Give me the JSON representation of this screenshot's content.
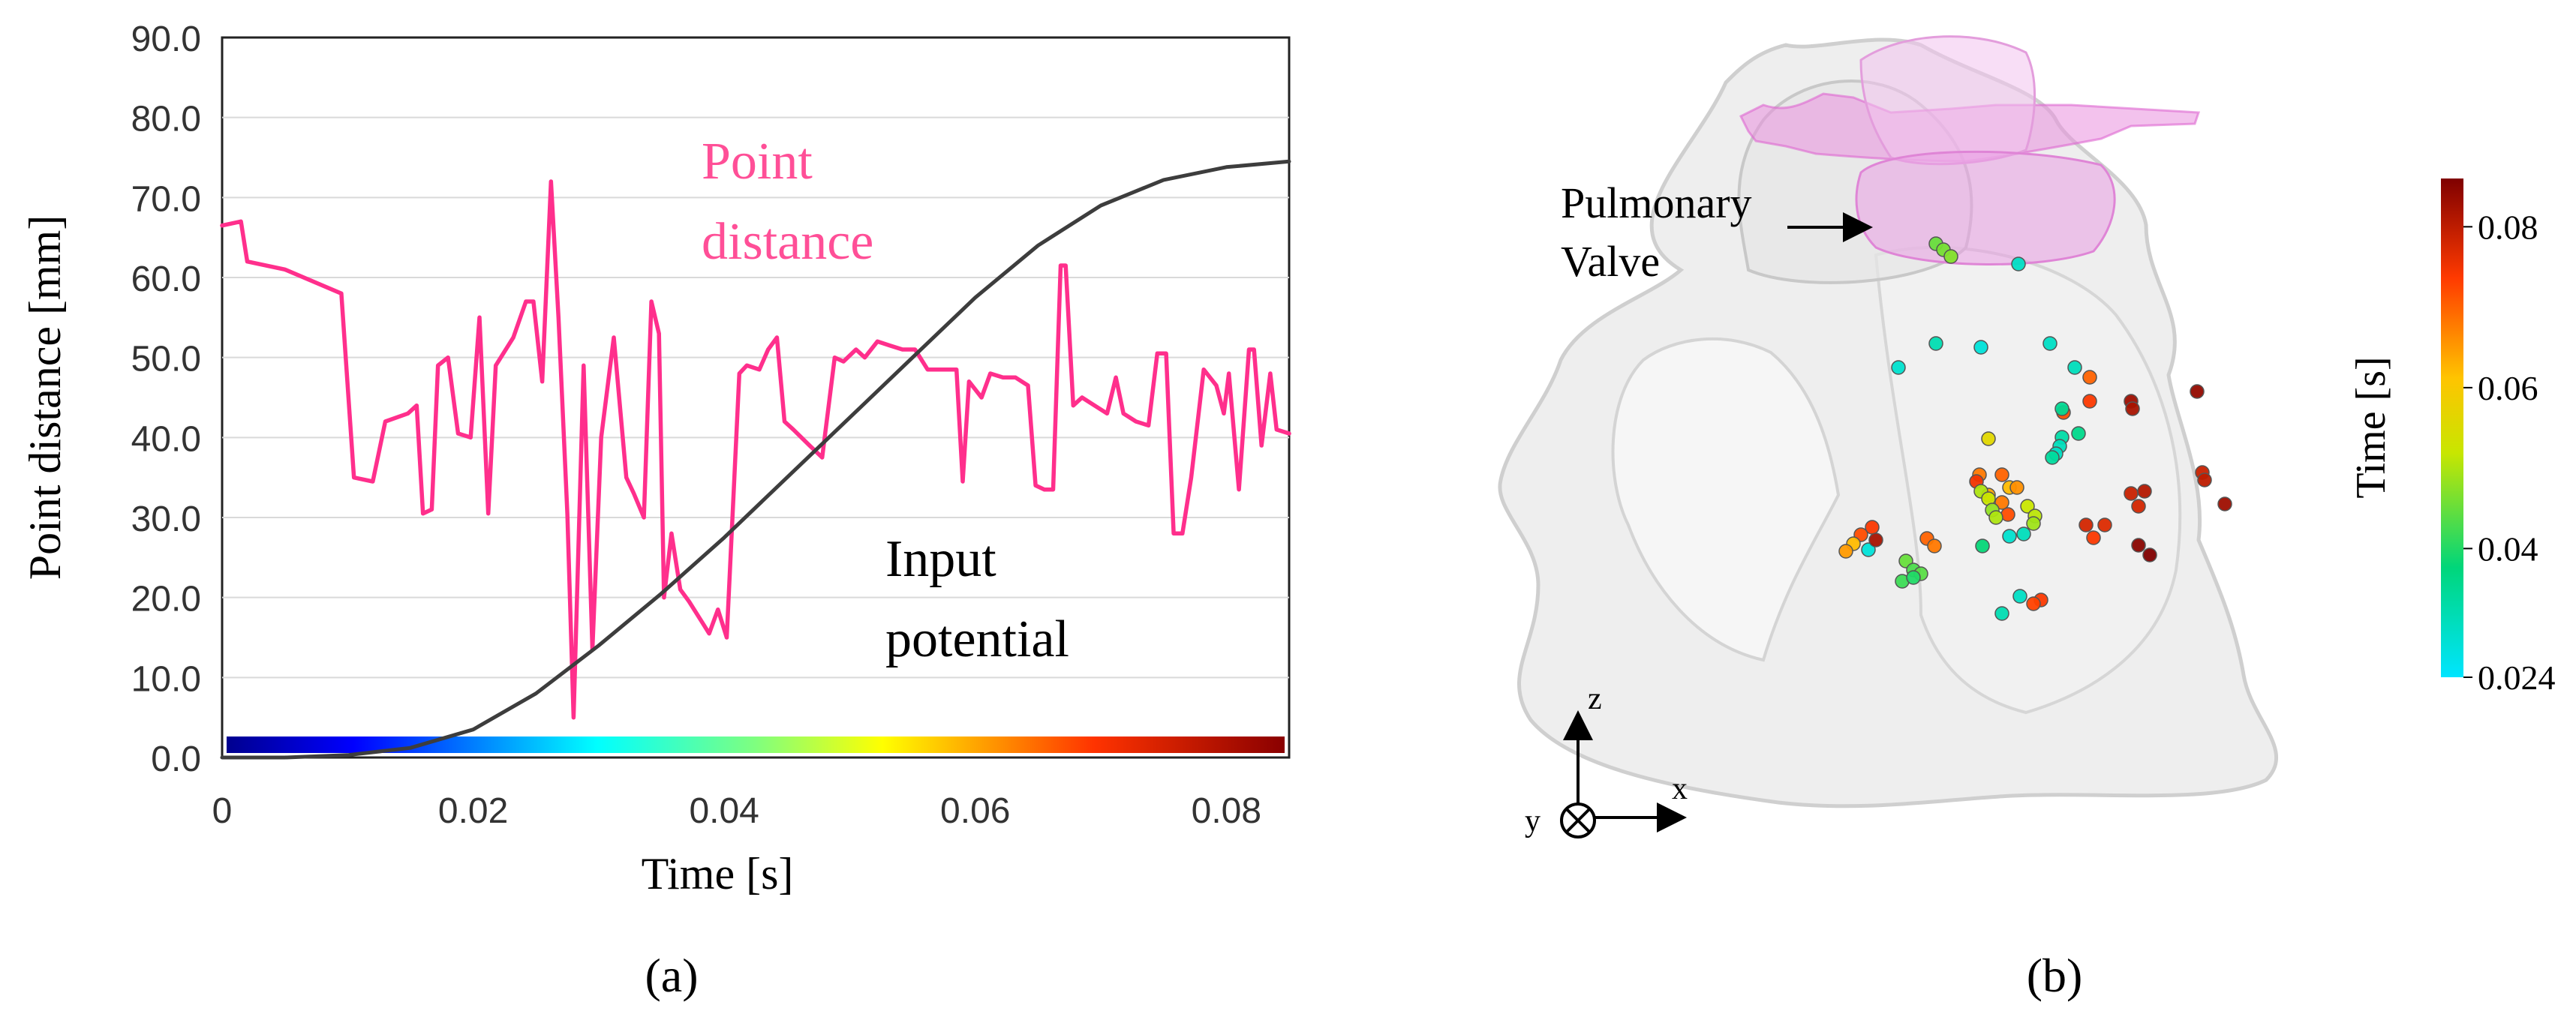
{
  "chart_data": [
    {
      "type": "line",
      "panel_label": "(a)",
      "xlabel": "Time [s]",
      "ylabel": "Point distance [mm]",
      "xlim": [
        0,
        0.085
      ],
      "ylim": [
        0,
        90
      ],
      "x_ticks": [
        "0",
        "0.02",
        "0.04",
        "0.06",
        "0.08"
      ],
      "x_tick_values": [
        0,
        0.02,
        0.04,
        0.06,
        0.08
      ],
      "y_ticks": [
        "0.0",
        "10.0",
        "20.0",
        "30.0",
        "40.0",
        "50.0",
        "60.0",
        "70.0",
        "80.0",
        "90.0"
      ],
      "y_tick_values": [
        0,
        10,
        20,
        30,
        40,
        50,
        60,
        70,
        80,
        90
      ],
      "grid": true,
      "annotations": {
        "point_distance_line1": "Point",
        "point_distance_line2": "distance",
        "input_potential_line1": "Input",
        "input_potential_line2": "potential"
      },
      "colorbar_axis": "time",
      "series": [
        {
          "name": "Point distance",
          "color": "#ff2f8c",
          "points": [
            [
              0,
              66.5
            ],
            [
              0.0015,
              67
            ],
            [
              0.002,
              62
            ],
            [
              0.005,
              61
            ],
            [
              0.0095,
              58
            ],
            [
              0.0105,
              35
            ],
            [
              0.012,
              34.5
            ],
            [
              0.013,
              42
            ],
            [
              0.0148,
              43
            ],
            [
              0.0155,
              44
            ],
            [
              0.016,
              30.5
            ],
            [
              0.0167,
              31
            ],
            [
              0.0172,
              49
            ],
            [
              0.018,
              50
            ],
            [
              0.0188,
              40.5
            ],
            [
              0.0198,
              40
            ],
            [
              0.0205,
              55
            ],
            [
              0.0212,
              30.5
            ],
            [
              0.0218,
              49
            ],
            [
              0.0232,
              52.5
            ],
            [
              0.0242,
              57
            ],
            [
              0.0248,
              57
            ],
            [
              0.0255,
              47
            ],
            [
              0.0262,
              72
            ],
            [
              0.0268,
              55
            ],
            [
              0.0275,
              30.5
            ],
            [
              0.028,
              5
            ],
            [
              0.0288,
              49
            ],
            [
              0.0295,
              13.5
            ],
            [
              0.0302,
              40
            ],
            [
              0.0312,
              52.5
            ],
            [
              0.0322,
              35
            ],
            [
              0.0328,
              33
            ],
            [
              0.0332,
              31.5
            ],
            [
              0.0336,
              30
            ],
            [
              0.0342,
              57
            ],
            [
              0.0348,
              53
            ],
            [
              0.0352,
              20
            ],
            [
              0.0358,
              28
            ],
            [
              0.0365,
              21
            ],
            [
              0.0372,
              19.5
            ],
            [
              0.0382,
              17
            ],
            [
              0.0388,
              15.5
            ],
            [
              0.0395,
              18.5
            ],
            [
              0.0402,
              15
            ],
            [
              0.0412,
              48
            ],
            [
              0.0418,
              49
            ],
            [
              0.0428,
              48.5
            ],
            [
              0.0435,
              51
            ],
            [
              0.0442,
              52.5
            ],
            [
              0.0448,
              42
            ],
            [
              0.0455,
              41
            ],
            [
              0.0468,
              39
            ],
            [
              0.0478,
              37.5
            ],
            [
              0.0488,
              50
            ],
            [
              0.0495,
              49.5
            ],
            [
              0.0505,
              51
            ],
            [
              0.0512,
              50
            ],
            [
              0.0522,
              52
            ],
            [
              0.0532,
              51.5
            ],
            [
              0.0542,
              51
            ],
            [
              0.0552,
              51
            ],
            [
              0.0562,
              48.5
            ],
            [
              0.0575,
              48.5
            ],
            [
              0.0585,
              48.5
            ],
            [
              0.059,
              34.5
            ],
            [
              0.0595,
              47
            ],
            [
              0.0605,
              45
            ],
            [
              0.0612,
              48
            ],
            [
              0.0622,
              47.5
            ],
            [
              0.0632,
              47.5
            ],
            [
              0.0642,
              46.5
            ],
            [
              0.0648,
              34
            ],
            [
              0.0655,
              33.5
            ],
            [
              0.0662,
              33.5
            ],
            [
              0.0668,
              61.5
            ],
            [
              0.0672,
              61.5
            ],
            [
              0.0678,
              44
            ],
            [
              0.0685,
              45
            ],
            [
              0.0695,
              44
            ],
            [
              0.0705,
              43
            ],
            [
              0.0712,
              47.5
            ],
            [
              0.0718,
              43
            ],
            [
              0.0728,
              42
            ],
            [
              0.0738,
              41.5
            ],
            [
              0.0745,
              50.5
            ],
            [
              0.0752,
              50.5
            ],
            [
              0.0758,
              28
            ],
            [
              0.0765,
              28
            ],
            [
              0.0772,
              35
            ],
            [
              0.0782,
              48.5
            ],
            [
              0.0792,
              46.5
            ],
            [
              0.0798,
              43
            ],
            [
              0.0802,
              48
            ],
            [
              0.081,
              33.5
            ],
            [
              0.0818,
              51
            ],
            [
              0.0822,
              51
            ],
            [
              0.0828,
              39
            ],
            [
              0.0835,
              48
            ],
            [
              0.084,
              41
            ],
            [
              0.085,
              40.5
            ]
          ]
        },
        {
          "name": "Input potential",
          "color": "#3d3d3d",
          "points": [
            [
              0,
              0
            ],
            [
              0.005,
              0
            ],
            [
              0.01,
              0.3
            ],
            [
              0.015,
              1.2
            ],
            [
              0.02,
              3.5
            ],
            [
              0.025,
              8
            ],
            [
              0.03,
              14
            ],
            [
              0.035,
              20.5
            ],
            [
              0.04,
              27.5
            ],
            [
              0.045,
              35
            ],
            [
              0.05,
              42.5
            ],
            [
              0.055,
              50
            ],
            [
              0.06,
              57.5
            ],
            [
              0.065,
              64
            ],
            [
              0.07,
              69
            ],
            [
              0.075,
              72.2
            ],
            [
              0.08,
              73.8
            ],
            [
              0.085,
              74.5
            ]
          ]
        }
      ]
    },
    {
      "type": "scatter",
      "panel_label": "(b)",
      "annotation_line1": "Pulmonary",
      "annotation_line2": "Valve",
      "colorbar": {
        "label": "Time [s]",
        "min": 0.024,
        "max": 0.086,
        "ticks": [
          "0.08",
          "0.06",
          "0.04",
          "0.024"
        ],
        "tick_values": [
          0.08,
          0.06,
          0.04,
          0.024
        ]
      },
      "axes_labels": {
        "x": "x",
        "y": "y",
        "z": "z"
      },
      "point_times": [
        0.045,
        0.046,
        0.047,
        0.03,
        0.032,
        0.028,
        0.03,
        0.029,
        0.031,
        0.07,
        0.072,
        0.074,
        0.083,
        0.082,
        0.084,
        0.035,
        0.033,
        0.036,
        0.031,
        0.03,
        0.034,
        0.068,
        0.07,
        0.056,
        0.062,
        0.075,
        0.064,
        0.068,
        0.072,
        0.05,
        0.052,
        0.048,
        0.05,
        0.066,
        0.052,
        0.051,
        0.049,
        0.078,
        0.077,
        0.074,
        0.085,
        0.086,
        0.079,
        0.08,
        0.083,
        0.081,
        0.079,
        0.078,
        0.028,
        0.072,
        0.074,
        0.029,
        0.031,
        0.045,
        0.043,
        0.07,
        0.068,
        0.044,
        0.03,
        0.074,
        0.073,
        0.032,
        0.042,
        0.04,
        0.038,
        0.062,
        0.065,
        0.082
      ]
    }
  ]
}
